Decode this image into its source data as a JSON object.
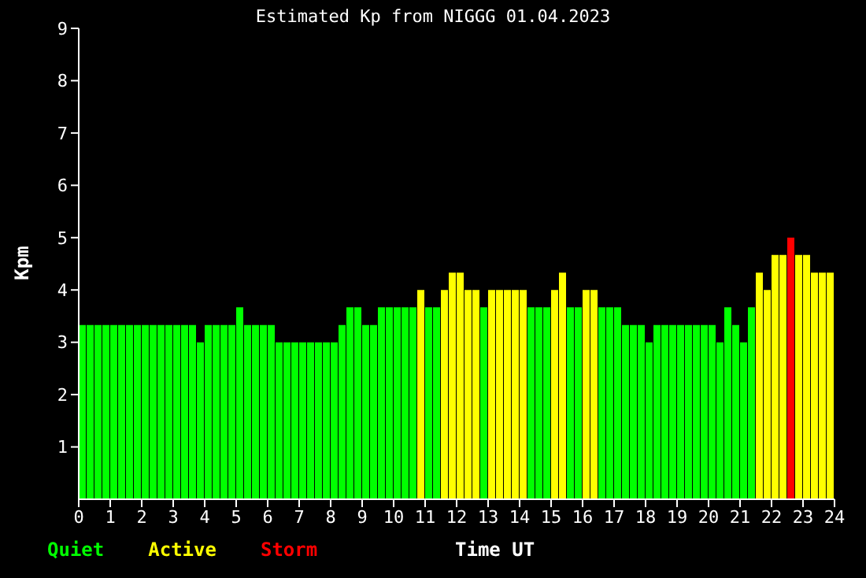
{
  "chart_data": {
    "type": "bar",
    "title": "Estimated Kp from NIGGG 01.04.2023",
    "xlabel": "Time UT",
    "ylabel": "Kpm",
    "x": [
      0.125,
      0.375,
      0.625,
      0.875,
      1.125,
      1.375,
      1.625,
      1.875,
      2.125,
      2.375,
      2.625,
      2.875,
      3.125,
      3.375,
      3.625,
      3.875,
      4.125,
      4.375,
      4.625,
      4.875,
      5.125,
      5.375,
      5.625,
      5.875,
      6.125,
      6.375,
      6.625,
      6.875,
      7.125,
      7.375,
      7.625,
      7.875,
      8.125,
      8.375,
      8.625,
      8.875,
      9.125,
      9.375,
      9.625,
      9.875,
      10.125,
      10.375,
      10.625,
      10.875,
      11.125,
      11.375,
      11.625,
      11.875,
      12.125,
      12.375,
      12.625,
      12.875,
      13.125,
      13.375,
      13.625,
      13.875,
      14.125,
      14.375,
      14.625,
      14.875,
      15.125,
      15.375,
      15.625,
      15.875,
      16.125,
      16.375,
      16.625,
      16.875,
      17.125,
      17.375,
      17.625,
      17.875,
      18.125,
      18.375,
      18.625,
      18.875,
      19.125,
      19.375,
      19.625,
      19.875,
      20.125,
      20.375,
      20.625,
      20.875,
      21.125,
      21.375,
      21.625,
      21.875,
      22.125,
      22.375,
      22.625,
      22.875,
      23.125,
      23.375,
      23.625,
      23.875
    ],
    "stacked": true,
    "series": [
      {
        "name": "Quiet",
        "color": "#00ff00",
        "values": [
          3.33,
          3.33,
          3.33,
          3.33,
          3.33,
          3.33,
          3.33,
          3.33,
          3.33,
          3.33,
          3.33,
          3.33,
          3.33,
          3.33,
          3.33,
          3.0,
          3.33,
          3.33,
          3.33,
          3.33,
          3.67,
          3.33,
          3.33,
          3.33,
          3.33,
          3.0,
          3.0,
          3.0,
          3.0,
          3.0,
          3.0,
          3.0,
          3.0,
          3.33,
          3.67,
          3.67,
          3.33,
          3.33,
          3.67,
          3.67,
          3.67,
          3.67,
          3.67,
          null,
          3.67,
          3.67,
          null,
          null,
          null,
          null,
          null,
          3.67,
          null,
          null,
          null,
          null,
          null,
          3.67,
          3.67,
          3.67,
          null,
          null,
          3.67,
          3.67,
          null,
          null,
          3.67,
          3.67,
          3.67,
          3.33,
          3.33,
          3.33,
          3.0,
          3.33,
          3.33,
          3.33,
          3.33,
          3.33,
          3.33,
          3.33,
          3.33,
          3.0,
          3.67,
          3.33,
          3.0,
          3.67,
          null,
          null,
          null,
          null,
          null,
          null,
          null,
          null,
          null,
          null
        ]
      },
      {
        "name": "Active",
        "color": "#ffff00",
        "values": [
          null,
          null,
          null,
          null,
          null,
          null,
          null,
          null,
          null,
          null,
          null,
          null,
          null,
          null,
          null,
          null,
          null,
          null,
          null,
          null,
          null,
          null,
          null,
          null,
          null,
          null,
          null,
          null,
          null,
          null,
          null,
          null,
          null,
          null,
          null,
          null,
          null,
          null,
          null,
          null,
          null,
          null,
          null,
          4.0,
          null,
          null,
          4.0,
          4.33,
          4.33,
          4.0,
          4.0,
          null,
          4.0,
          4.0,
          4.0,
          4.0,
          4.0,
          null,
          null,
          null,
          4.0,
          4.33,
          null,
          null,
          4.0,
          4.0,
          null,
          null,
          null,
          null,
          null,
          null,
          null,
          null,
          null,
          null,
          null,
          null,
          null,
          null,
          null,
          null,
          null,
          null,
          null,
          null,
          4.33,
          4.0,
          4.67,
          4.67,
          null,
          4.67,
          4.67,
          4.33,
          4.33,
          4.33
        ]
      },
      {
        "name": "Storm",
        "color": "#ff0000",
        "values": [
          null,
          null,
          null,
          null,
          null,
          null,
          null,
          null,
          null,
          null,
          null,
          null,
          null,
          null,
          null,
          null,
          null,
          null,
          null,
          null,
          null,
          null,
          null,
          null,
          null,
          null,
          null,
          null,
          null,
          null,
          null,
          null,
          null,
          null,
          null,
          null,
          null,
          null,
          null,
          null,
          null,
          null,
          null,
          null,
          null,
          null,
          null,
          null,
          null,
          null,
          null,
          null,
          null,
          null,
          null,
          null,
          null,
          null,
          null,
          null,
          null,
          null,
          null,
          null,
          null,
          null,
          null,
          null,
          null,
          null,
          null,
          null,
          null,
          null,
          null,
          null,
          null,
          null,
          null,
          null,
          null,
          null,
          null,
          null,
          null,
          null,
          null,
          null,
          null,
          null,
          5.0,
          null,
          null,
          null,
          null,
          null
        ]
      }
    ],
    "xlim": [
      0,
      24
    ],
    "xticks": [
      0,
      1,
      2,
      3,
      4,
      5,
      6,
      7,
      8,
      9,
      10,
      11,
      12,
      13,
      14,
      15,
      16,
      17,
      18,
      19,
      20,
      21,
      22,
      23,
      24
    ],
    "ylim": [
      0,
      9
    ],
    "yticks": [
      1,
      2,
      3,
      4,
      5,
      6,
      7,
      8,
      9
    ],
    "grid": false,
    "legend": "bottom left"
  }
}
